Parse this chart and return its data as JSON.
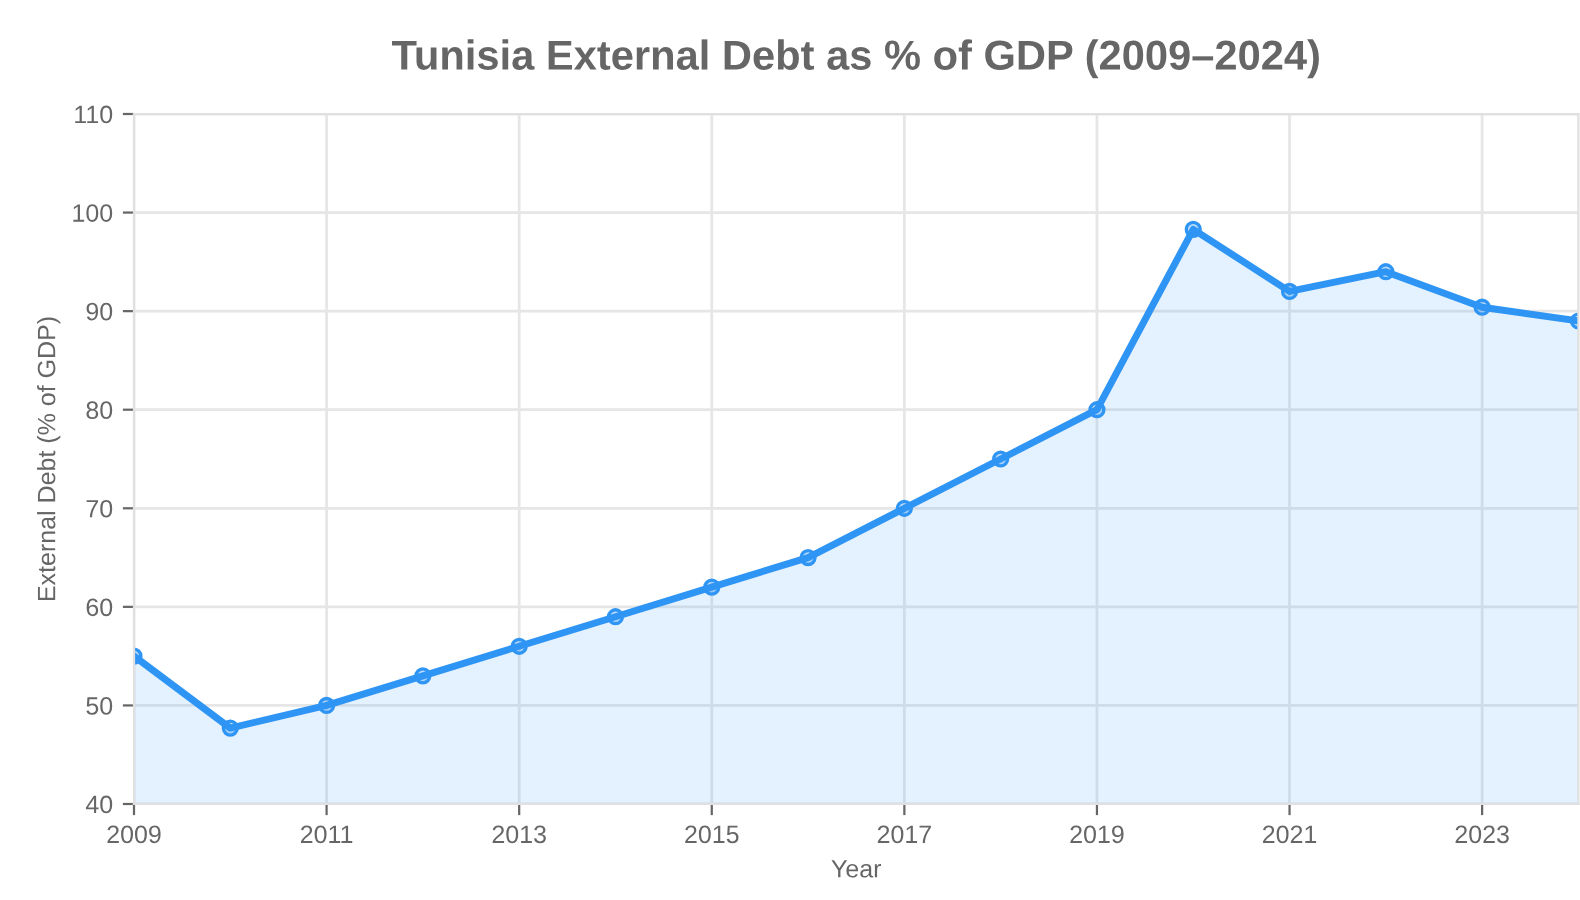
{
  "chart_data": {
    "type": "area",
    "title": "Tunisia External Debt as % of GDP (2009–2024)",
    "xlabel": "Year",
    "ylabel": "External Debt (% of GDP)",
    "x": [
      2009,
      2010,
      2011,
      2012,
      2013,
      2014,
      2015,
      2016,
      2017,
      2018,
      2019,
      2020,
      2021,
      2022,
      2023,
      2024
    ],
    "series": [
      {
        "color": "#2f95f5",
        "values": [
          55,
          47.7,
          50,
          53,
          56,
          59,
          62,
          65,
          70,
          75,
          80,
          98.3,
          92,
          94,
          90.4,
          89
        ]
      }
    ],
    "xlim": [
      2009,
      2024
    ],
    "xticks": [
      2009,
      2011,
      2013,
      2015,
      2017,
      2019,
      2021,
      2023
    ],
    "ylim": [
      40,
      110
    ],
    "yticks": [
      40,
      50,
      60,
      70,
      80,
      90,
      100,
      110
    ],
    "grid": true,
    "marker": "circle",
    "line_style": "solid"
  }
}
